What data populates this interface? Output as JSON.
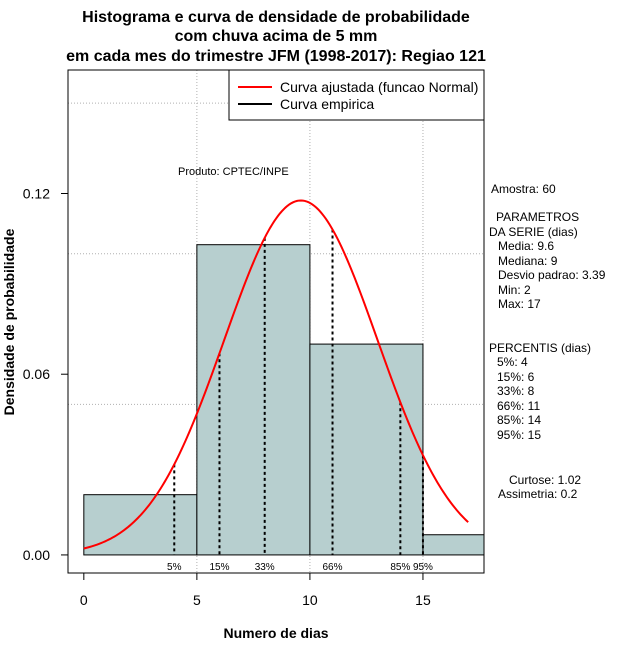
{
  "chart_data": {
    "type": "bar",
    "title_lines": [
      "Histograma e curva de densidade de probabilidade",
      "com chuva acima de 5 mm",
      "em cada mes do trimestre JFM (1998-2017): Regiao 121"
    ],
    "xlabel": "Numero de dias",
    "ylabel": "Densidade de probabilidade",
    "xlim": [
      -0.7,
      17.7
    ],
    "ylim": [
      -0.006,
      0.161
    ],
    "x_ticks": [
      0,
      5,
      10,
      15
    ],
    "y_ticks": [
      0.0,
      0.06,
      0.12
    ],
    "y_tick_labels": [
      "0.00",
      "0.06",
      "0.12"
    ],
    "grid_x": [
      5,
      10,
      15
    ],
    "grid_y": [
      0.05,
      0.1,
      0.15
    ],
    "bins": [
      {
        "x0": 0,
        "x1": 5,
        "density": 0.02
      },
      {
        "x0": 5,
        "x1": 10,
        "density": 0.103
      },
      {
        "x0": 10,
        "x1": 15,
        "density": 0.07
      },
      {
        "x0": 15,
        "x1": 17.7,
        "density": 0.0067
      }
    ],
    "fit_curve": {
      "name": "Curva ajustada (funcao Normal)",
      "mean": 9.6,
      "sd": 3.39,
      "x_from": 0,
      "x_to": 17,
      "color": "#ff0000"
    },
    "empirical_name": "Curva empirica",
    "empirical_color": "#000000",
    "legend_position": "top-right",
    "annotation": "Produto: CPTEC/INPE",
    "bar_fill": "#b7cfcf",
    "percentiles": [
      {
        "label": "5%",
        "x": 4
      },
      {
        "label": "15%",
        "x": 6
      },
      {
        "label": "33%",
        "x": 8
      },
      {
        "label": "66%",
        "x": 11
      },
      {
        "label": "85%",
        "x": 14
      },
      {
        "label": "95%",
        "x": 15
      }
    ],
    "side_panel": {
      "amostra": "Amostra: 60",
      "params_title": "PARAMETROS",
      "params_sub": "DA SERIE (dias)",
      "media": "Media: 9.6",
      "mediana": "Mediana: 9",
      "desvio": "Desvio padrao: 3.39",
      "min": "Min: 2",
      "max": "Max: 17",
      "percentis_title": "PERCENTIS (dias)",
      "p5": "5%: 4",
      "p15": "15%: 6",
      "p33": "33%: 8",
      "p66": "66%: 11",
      "p85": "85%: 14",
      "p95": "95%: 15",
      "curtose": "Curtose: 1.02",
      "assimetria": "Assimetria: 0.2"
    }
  }
}
